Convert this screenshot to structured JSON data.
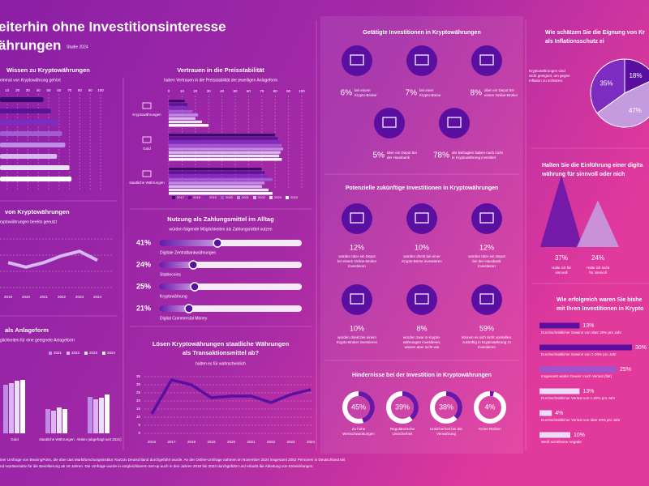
{
  "header": {
    "title": [
      "eiterhin ohne Investitionsinteresse",
      "ährungen"
    ],
    "badge": "Studie 2024"
  },
  "knowledge": {
    "title": "Wissen zu Kryptowährungen",
    "subtitle": "einmal von Kryptowährung gehört",
    "xlim": [
      0,
      100
    ],
    "xticks": [
      10,
      20,
      30,
      40,
      50,
      60,
      70,
      80,
      90,
      100
    ],
    "values": [
      45,
      52,
      60,
      63,
      66,
      58,
      70,
      72
    ]
  },
  "usage": {
    "title": "von Kryptowährungen",
    "subtitle": "ryptowährungen bereits genutzt",
    "x": [
      "2019",
      "2020",
      "2021",
      "2022",
      "2023",
      "2024"
    ],
    "ylim": [
      0,
      25
    ],
    "values": [
      11,
      9,
      11,
      14,
      16,
      12
    ]
  },
  "investment_form": {
    "title": "als Anlageform",
    "subtitle": "glichkeiten für eine geeignete Anlageform",
    "categories": [
      "Gold",
      "staatliche Währungen",
      "Aktien (abgefragt seit 2021)"
    ],
    "ylim": [
      0,
      100
    ],
    "series": [
      {
        "name": "2021",
        "values": [
          60,
          30,
          45
        ]
      },
      {
        "name": "2022",
        "values": [
          62,
          28,
          42
        ]
      },
      {
        "name": "2023",
        "values": [
          65,
          32,
          44
        ]
      },
      {
        "name": "2024",
        "values": [
          66,
          30,
          48
        ]
      }
    ]
  },
  "trust": {
    "title": "Vertrauen in die Preisstabilität",
    "subtitle": "haben Vertrauen in die Preisstabilität der jeweiligen Anlageform",
    "categories": [
      "Kryptowährungen",
      "Gold",
      "staatliche Währungen"
    ],
    "xlim": [
      0,
      100
    ],
    "xticks": [
      0,
      10,
      20,
      30,
      40,
      50,
      60,
      70,
      80,
      90,
      100
    ],
    "series": [
      {
        "name": "2017",
        "values": [
          12,
          80,
          70
        ]
      },
      {
        "name": "2018",
        "values": [
          14,
          82,
          72
        ]
      },
      {
        "name": "2019",
        "values": [
          15,
          84,
          74
        ]
      },
      {
        "name": "2020",
        "values": [
          18,
          85,
          78
        ]
      },
      {
        "name": "2021",
        "values": [
          22,
          86,
          72
        ]
      },
      {
        "name": "2022",
        "values": [
          20,
          84,
          70
        ]
      },
      {
        "name": "2023",
        "values": [
          25,
          83,
          75
        ]
      },
      {
        "name": "2024",
        "values": [
          30,
          85,
          78
        ]
      }
    ]
  },
  "payment": {
    "title": "Nutzung als Zahlungsmittel im Alltag",
    "subtitle": "würden folgende Möglichkeiten als Zahlungsmittel nutzen",
    "items": [
      {
        "value": 41,
        "label": "41%",
        "name": "Digitale Zentralbankwährungen"
      },
      {
        "value": 24,
        "label": "24%",
        "name": "Stablecoins"
      },
      {
        "value": 25,
        "label": "25%",
        "name": "Kryptowährung"
      },
      {
        "value": 21,
        "label": "21%",
        "name": "Digital Commercial Money"
      }
    ]
  },
  "replace": {
    "title": [
      "Lösen Kryptowährungen staatliche Währungen",
      "als Transaktionsmittel ab?"
    ],
    "subtitle": "halten es für wahrscheinlich",
    "x": [
      "2016",
      "2017",
      "2018",
      "2019",
      "2020",
      "2021",
      "2022",
      "2023",
      "2024"
    ],
    "ylim": [
      0,
      35
    ],
    "yticks": [
      0,
      5,
      10,
      15,
      20,
      25,
      30,
      35
    ],
    "values": [
      12,
      33,
      30,
      22,
      23,
      23,
      19,
      24,
      27
    ]
  },
  "made": {
    "title": "Getätigte Investitionen in Kryptowährungen",
    "items": [
      {
        "value": 6,
        "label": "6%",
        "desc": [
          "bei einem",
          "Krypto-Broker"
        ]
      },
      {
        "value": 7,
        "label": "7%",
        "desc": [
          "bei einer",
          "Krypto-Börse"
        ]
      },
      {
        "value": 8,
        "label": "8%",
        "desc": [
          "über ein Depot bei",
          "einem Online-Broker"
        ]
      },
      {
        "value": 5,
        "label": "5%",
        "desc": [
          "über ein Depot bei",
          "der Hausbank"
        ]
      },
      {
        "value": 78,
        "label": "78%",
        "desc": [
          "der Befragten haben noch nicht",
          "in Kryptowährung investiert"
        ]
      }
    ]
  },
  "potential": {
    "title": "Potenzielle zukünftige Investitionen in Kryptowährungen",
    "items": [
      {
        "value": 12,
        "label": "12%",
        "desc": [
          "würden über ein Depot",
          "bei einem Online-Broker",
          "investieren"
        ]
      },
      {
        "value": 10,
        "label": "10%",
        "desc": [
          "würden direkt bei einer",
          "Krypto-Börse investieren"
        ]
      },
      {
        "value": 12,
        "label": "12%",
        "desc": [
          "würden über ein Depot",
          "bei der Hausbank",
          "investieren"
        ]
      },
      {
        "value": 10,
        "label": "10%",
        "desc": [
          "würden direkt bei einem",
          "Krypto-Broker investieren"
        ]
      },
      {
        "value": 8,
        "label": "8%",
        "desc": [
          "würden zwar in Krypto-",
          "währungen investieren,",
          "wissen aber nicht wie"
        ]
      },
      {
        "value": 59,
        "label": "59%",
        "desc": [
          "können es sich nicht vorstellen,",
          "zukünftig in Kryptowährung zu",
          "investieren"
        ]
      }
    ]
  },
  "obstacles": {
    "title": "Hindernisse bei der Investition in Kryptowährungen",
    "items": [
      {
        "value": 45,
        "label": "45%",
        "desc": [
          "Zu hohe",
          "Wertschwankungen"
        ]
      },
      {
        "value": 39,
        "label": "39%",
        "desc": [
          "Regulatorische",
          "Unsicherheit"
        ]
      },
      {
        "value": 38,
        "label": "38%",
        "desc": [
          "Unsicherheit bei der",
          "Verwahrung"
        ]
      },
      {
        "value": 4,
        "label": "4%",
        "desc": [
          "Keine Risiken"
        ]
      }
    ]
  },
  "inflation": {
    "title": [
      "Wie schätzen Sie die Eignung von Kr",
      "als Inflationsschutz ei"
    ],
    "note": [
      "Kryptowährungen sind",
      "nicht geeignet, um gegen",
      "Inflation zu schützen."
    ],
    "slices": [
      {
        "value": 18,
        "label": "18%"
      },
      {
        "value": 47,
        "label": "47%"
      },
      {
        "value": 35,
        "label": "35%"
      }
    ]
  },
  "digital": {
    "title": [
      "Halten Sie die Einführung einer digita",
      "währung für sinnvoll oder nich"
    ],
    "items": [
      {
        "value": 37,
        "label": "37%",
        "desc": [
          "Halte ich für",
          "sinnvoll"
        ]
      },
      {
        "value": 24,
        "label": "24%",
        "desc": [
          "Halte ich nicht",
          "für sinnvoll"
        ]
      }
    ]
  },
  "success": {
    "title": [
      "Wie erfolgreich waren Sie bishe",
      "mit Ihren Investitionen in Krypto"
    ],
    "items": [
      {
        "value": 13,
        "label": "13%",
        "desc": "Durchschnittlicher Gewinn von über 20% pro Jahr"
      },
      {
        "value": 30,
        "label": "30%",
        "desc": "Durchschnittlicher Gewinn von 1-20% pro Jahr"
      },
      {
        "value": 25,
        "label": "25%",
        "desc": "Insgesamt weder Gewinn noch Verlust (flat)"
      },
      {
        "value": 13,
        "label": "13%",
        "desc": "Durchschnittlicher Verlust von 1-20% pro Jahr"
      },
      {
        "value": 4,
        "label": "4%",
        "desc": "Durchschnittlicher Verlust von über 20% pro Jahr"
      },
      {
        "value": 10,
        "label": "10%",
        "desc": "Weiß nicht/keine Angabe"
      }
    ]
  },
  "footer": [
    "iner Umfrage von BearingPoint, die über das Marktforschungsinstitut YouGov Deutschland durchgeführt wurde. An der Online-Umfrage nahmen im November 2024 insgesamt 2052 Personen in Deutschland teil.",
    "nd repräsentativ für die Bevölkerung ab 18 Jahren. Die Umfrage wurde in vergleichbarem Set-up auch in den Jahren 2016 bis 2023 durchgeführt und erlaubt die Ableitung von Entwicklungen."
  ]
}
